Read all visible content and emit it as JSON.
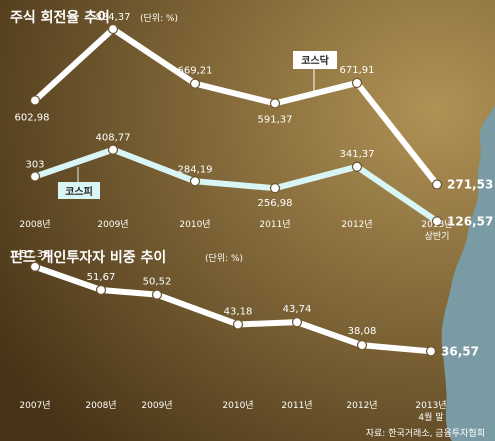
{
  "colors": {
    "background_light": "#b09255",
    "background_dark": "#473316",
    "sea": "#7a9aa4",
    "kosdaq_line": "#ffffff",
    "kospi_line": "#d9f6f6",
    "fund_line": "#ffffff",
    "text": "#ffffff",
    "highlight_text": "#ffffff"
  },
  "source": "자료: 한국거래소, 금융투자협회",
  "chart_data": [
    {
      "type": "line",
      "title": "주식 회전율 추이",
      "unit": "(단위: %)",
      "categories": [
        "2008년",
        "2009년",
        "2010년",
        "2011년",
        "2012년",
        "2013년 상반기"
      ],
      "category_lines": [
        [
          "2008년"
        ],
        [
          "2009년"
        ],
        [
          "2010년"
        ],
        [
          "2011년"
        ],
        [
          "2012년"
        ],
        [
          "2013년",
          "상반기"
        ]
      ],
      "ylim": [
        100,
        920
      ],
      "series": [
        {
          "name": "코스닥",
          "values": [
            602.98,
            884.37,
            669.21,
            591.37,
            671.91,
            271.53
          ],
          "labels": [
            "602,98",
            "884,37",
            "669,21",
            "591,37",
            "671,91",
            "271,53"
          ]
        },
        {
          "name": "코스피",
          "values": [
            303,
            408.77,
            284.19,
            256.98,
            341.37,
            126.57
          ],
          "labels": [
            "303",
            "408,77",
            "284,19",
            "256,98",
            "341,37",
            "126,57"
          ]
        }
      ]
    },
    {
      "type": "line",
      "title": "펀드 개인투자자 비중 추이",
      "unit": "(단위: %)",
      "categories": [
        "2007년",
        "2008년",
        "2009년",
        "2010년",
        "2011년",
        "2012년",
        "2013년 4월 말"
      ],
      "category_lines": [
        [
          "2007년"
        ],
        [
          "2008년"
        ],
        [
          "2009년"
        ],
        [
          "2010년"
        ],
        [
          "2011년"
        ],
        [
          "2012년"
        ],
        [
          "2013년",
          "4월 말"
        ]
      ],
      "ylim": [
        30,
        62
      ],
      "series": [
        {
          "values": [
            57.38,
            51.67,
            50.52,
            43.18,
            43.74,
            38.08,
            36.57
          ],
          "labels": [
            "57,38",
            "51,67",
            "50,52",
            "43,18",
            "43,74",
            "38,08",
            "36,57"
          ]
        }
      ]
    }
  ]
}
